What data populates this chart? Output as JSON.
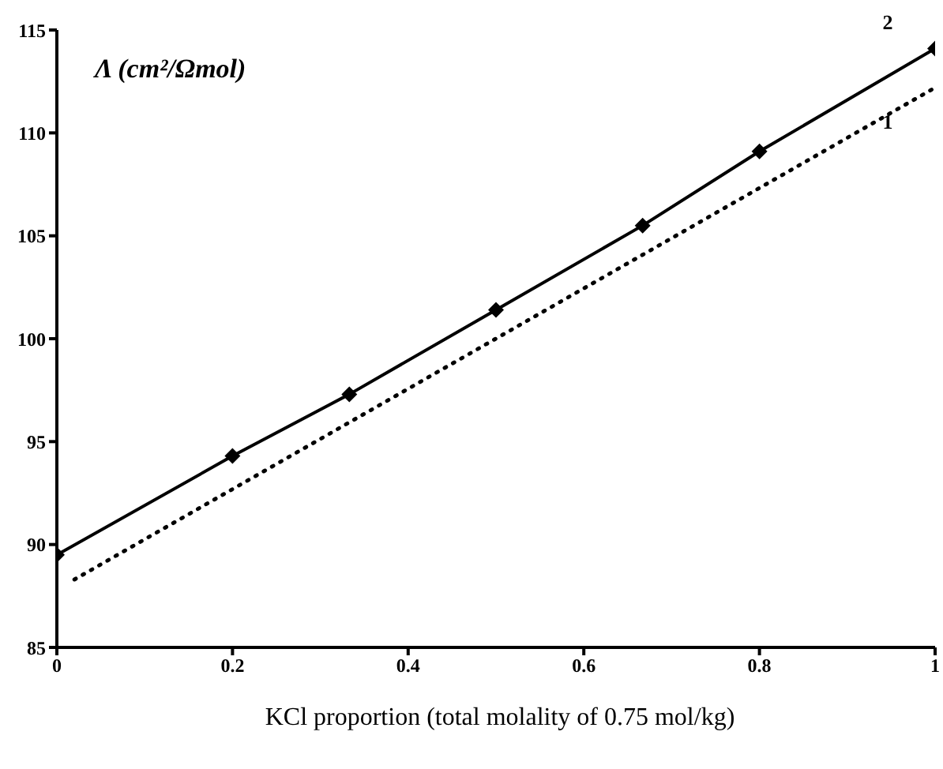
{
  "chart_data": {
    "type": "line",
    "ylabel": "Λ (cm²/Ωmol)",
    "xlabel": "KCl proportion (total molality of 0.75 mol/kg)",
    "xlim": [
      0,
      1
    ],
    "xticks": [
      0,
      0.2,
      0.4,
      0.6,
      0.8,
      1
    ],
    "ylim": [
      85,
      115
    ],
    "yticks": [
      85,
      90,
      95,
      100,
      105,
      110,
      115
    ],
    "grid": false,
    "legend": false,
    "series": [
      {
        "name": "1",
        "color": "#000000",
        "line_style": "dotted",
        "marker": "none",
        "x": [
          0.02,
          1
        ],
        "values": [
          88.3,
          112.2
        ]
      },
      {
        "name": "2",
        "color": "#000000",
        "line_style": "solid",
        "marker": "diamond",
        "x": [
          0,
          0.2,
          0.333,
          0.5,
          0.667,
          0.8,
          1
        ],
        "values": [
          89.5,
          94.3,
          97.3,
          101.4,
          105.5,
          109.1,
          114.1
        ]
      }
    ]
  }
}
